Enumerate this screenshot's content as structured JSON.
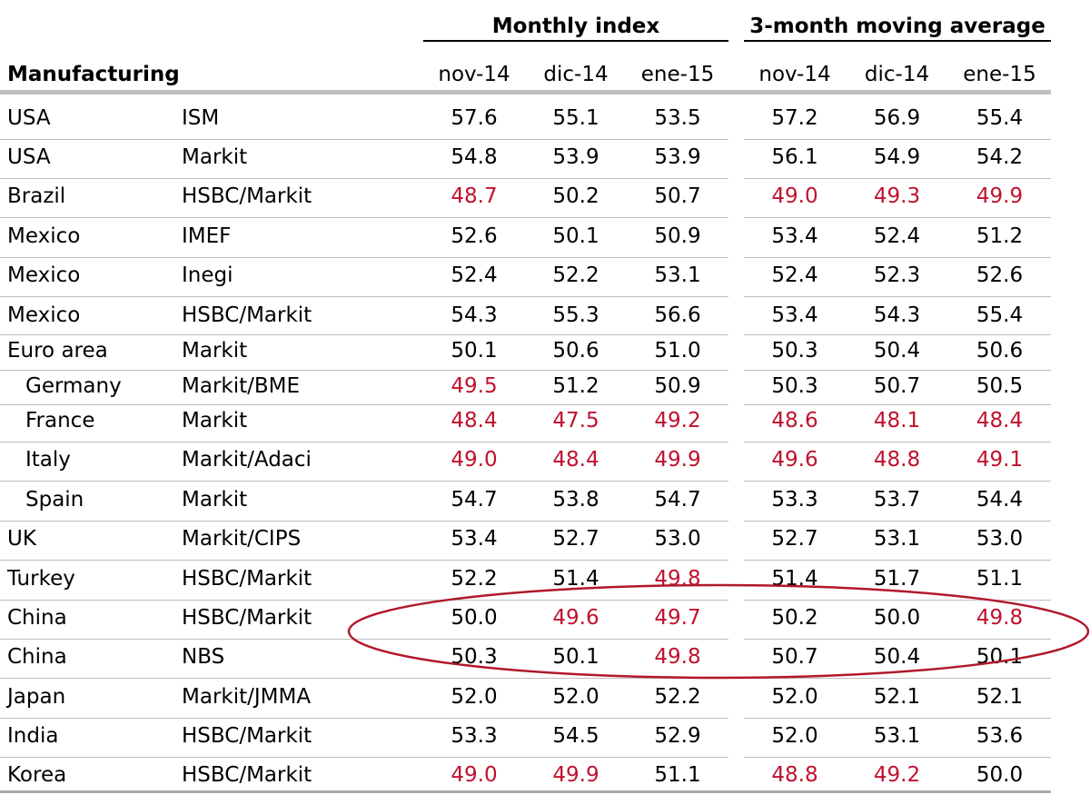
{
  "chart_data": {
    "type": "table",
    "title": "Manufacturing",
    "group_headers": [
      "Monthly index",
      "3-month moving average"
    ],
    "columns": [
      "nov-14",
      "dic-14",
      "ene-15",
      "nov-14",
      "dic-14",
      "ene-15"
    ],
    "highlight_color": "#c0112f",
    "ellipse_color": "#b0182b",
    "rows": [
      {
        "country": "USA",
        "source": "ISM",
        "indent": false,
        "values": [
          "57.6",
          "55.1",
          "53.5",
          "57.2",
          "56.9",
          "55.4"
        ],
        "red": [
          false,
          false,
          false,
          false,
          false,
          false
        ]
      },
      {
        "country": "USA",
        "source": "Markit",
        "indent": false,
        "values": [
          "54.8",
          "53.9",
          "53.9",
          "56.1",
          "54.9",
          "54.2"
        ],
        "red": [
          false,
          false,
          false,
          false,
          false,
          false
        ]
      },
      {
        "country": "Brazil",
        "source": "HSBC/Markit",
        "indent": false,
        "values": [
          "48.7",
          "50.2",
          "50.7",
          "49.0",
          "49.3",
          "49.9"
        ],
        "red": [
          true,
          false,
          false,
          true,
          true,
          true
        ]
      },
      {
        "country": "Mexico",
        "source": "IMEF",
        "indent": false,
        "values": [
          "52.6",
          "50.1",
          "50.9",
          "53.4",
          "52.4",
          "51.2"
        ],
        "red": [
          false,
          false,
          false,
          false,
          false,
          false
        ]
      },
      {
        "country": "Mexico",
        "source": "Inegi",
        "indent": false,
        "values": [
          "52.4",
          "52.2",
          "53.1",
          "52.4",
          "52.3",
          "52.6"
        ],
        "red": [
          false,
          false,
          false,
          false,
          false,
          false
        ]
      },
      {
        "country": "Mexico",
        "source": "HSBC/Markit",
        "indent": false,
        "values": [
          "54.3",
          "55.3",
          "56.6",
          "53.4",
          "54.3",
          "55.4"
        ],
        "red": [
          false,
          false,
          false,
          false,
          false,
          false
        ]
      },
      {
        "country": "Euro area",
        "source": "Markit",
        "indent": false,
        "values": [
          "50.1",
          "50.6",
          "51.0",
          "50.3",
          "50.4",
          "50.6"
        ],
        "red": [
          false,
          false,
          false,
          false,
          false,
          false
        ]
      },
      {
        "country": "Germany",
        "source": "Markit/BME",
        "indent": true,
        "values": [
          "49.5",
          "51.2",
          "50.9",
          "50.3",
          "50.7",
          "50.5"
        ],
        "red": [
          true,
          false,
          false,
          false,
          false,
          false
        ]
      },
      {
        "country": "France",
        "source": "Markit",
        "indent": true,
        "values": [
          "48.4",
          "47.5",
          "49.2",
          "48.6",
          "48.1",
          "48.4"
        ],
        "red": [
          true,
          true,
          true,
          true,
          true,
          true
        ]
      },
      {
        "country": "Italy",
        "source": "Markit/Adaci",
        "indent": true,
        "values": [
          "49.0",
          "48.4",
          "49.9",
          "49.6",
          "48.8",
          "49.1"
        ],
        "red": [
          true,
          true,
          true,
          true,
          true,
          true
        ]
      },
      {
        "country": "Spain",
        "source": "Markit",
        "indent": true,
        "values": [
          "54.7",
          "53.8",
          "54.7",
          "53.3",
          "53.7",
          "54.4"
        ],
        "red": [
          false,
          false,
          false,
          false,
          false,
          false
        ]
      },
      {
        "country": "UK",
        "source": "Markit/CIPS",
        "indent": false,
        "values": [
          "53.4",
          "52.7",
          "53.0",
          "52.7",
          "53.1",
          "53.0"
        ],
        "red": [
          false,
          false,
          false,
          false,
          false,
          false
        ]
      },
      {
        "country": "Turkey",
        "source": "HSBC/Markit",
        "indent": false,
        "values": [
          "52.2",
          "51.4",
          "49.8",
          "51.4",
          "51.7",
          "51.1"
        ],
        "red": [
          false,
          false,
          true,
          false,
          false,
          false
        ]
      },
      {
        "country": "China",
        "source": "HSBC/Markit",
        "indent": false,
        "values": [
          "50.0",
          "49.6",
          "49.7",
          "50.2",
          "50.0",
          "49.8"
        ],
        "red": [
          false,
          true,
          true,
          false,
          false,
          true
        ]
      },
      {
        "country": "China",
        "source": "NBS",
        "indent": false,
        "values": [
          "50.3",
          "50.1",
          "49.8",
          "50.7",
          "50.4",
          "50.1"
        ],
        "red": [
          false,
          false,
          true,
          false,
          false,
          false
        ]
      },
      {
        "country": "Japan",
        "source": "Markit/JMMA",
        "indent": false,
        "values": [
          "52.0",
          "52.0",
          "52.2",
          "52.0",
          "52.1",
          "52.1"
        ],
        "red": [
          false,
          false,
          false,
          false,
          false,
          false
        ]
      },
      {
        "country": "India",
        "source": "HSBC/Markit",
        "indent": false,
        "values": [
          "53.3",
          "54.5",
          "52.9",
          "52.0",
          "53.1",
          "53.6"
        ],
        "red": [
          false,
          false,
          false,
          false,
          false,
          false
        ]
      },
      {
        "country": "Korea",
        "source": "HSBC/Markit",
        "indent": false,
        "values": [
          "49.0",
          "49.9",
          "51.1",
          "48.8",
          "49.2",
          "50.0"
        ],
        "red": [
          true,
          true,
          false,
          true,
          true,
          false
        ]
      }
    ]
  }
}
